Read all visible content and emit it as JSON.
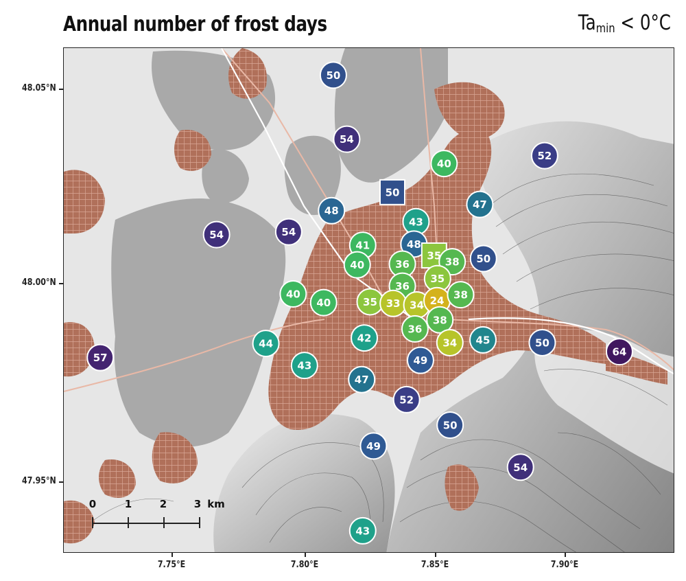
{
  "title": "Annual number of frost days",
  "condition": {
    "base": "Ta",
    "subscript": "min",
    "rest": " < 0°C"
  },
  "axes": {
    "lat_labels": [
      "48.05°N",
      "48.00°N",
      "47.95°N"
    ],
    "lon_labels": [
      "7.75°E",
      "7.80°E",
      "7.85°E",
      "7.90°E"
    ]
  },
  "scale_bar": {
    "ticks": [
      "0",
      "1",
      "2",
      "3"
    ],
    "unit": "km"
  },
  "colors": {
    "urban": "#b0705a",
    "forest": "#a8a8a8",
    "background": "#e6e6e6",
    "relief_shadow": "#6e6e6e",
    "contour": "#3a3a3a",
    "station_border": "#ffffff",
    "value_scale": [
      {
        "value": 24,
        "color": "#d4b21c"
      },
      {
        "value": 33,
        "color": "#b7c42a"
      },
      {
        "value": 35,
        "color": "#8cc63e"
      },
      {
        "value": 36,
        "color": "#55b850"
      },
      {
        "value": 40,
        "color": "#3db860"
      },
      {
        "value": 43,
        "color": "#1fa18a"
      },
      {
        "value": 45,
        "color": "#21868d"
      },
      {
        "value": 47,
        "color": "#23728e"
      },
      {
        "value": 48,
        "color": "#2a6693"
      },
      {
        "value": 49,
        "color": "#2f5a94"
      },
      {
        "value": 50,
        "color": "#31508c"
      },
      {
        "value": 52,
        "color": "#3a3d86"
      },
      {
        "value": 54,
        "color": "#40307a"
      },
      {
        "value": 57,
        "color": "#442470"
      },
      {
        "value": 64,
        "color": "#40185f"
      }
    ]
  },
  "stations": [
    {
      "value": 50,
      "lon": 7.8114,
      "lat": 48.0536,
      "shape": "circle"
    },
    {
      "value": 54,
      "lon": 7.8165,
      "lat": 48.0373,
      "shape": "circle"
    },
    {
      "value": 40,
      "lon": 7.8536,
      "lat": 48.0311,
      "shape": "circle"
    },
    {
      "value": 52,
      "lon": 7.8919,
      "lat": 48.0331,
      "shape": "circle"
    },
    {
      "value": 50,
      "lon": 7.8339,
      "lat": 48.0238,
      "shape": "square"
    },
    {
      "value": 48,
      "lon": 7.8107,
      "lat": 48.0191,
      "shape": "circle"
    },
    {
      "value": 47,
      "lon": 7.8672,
      "lat": 48.0207,
      "shape": "circle"
    },
    {
      "value": 43,
      "lon": 7.8429,
      "lat": 48.0163,
      "shape": "circle"
    },
    {
      "value": 54,
      "lon": 7.7669,
      "lat": 48.013,
      "shape": "circle"
    },
    {
      "value": 54,
      "lon": 7.7944,
      "lat": 48.0137,
      "shape": "circle"
    },
    {
      "value": 41,
      "lon": 7.8226,
      "lat": 48.0103,
      "shape": "circle"
    },
    {
      "value": 48,
      "lon": 7.8421,
      "lat": 48.0106,
      "shape": "circle"
    },
    {
      "value": 35,
      "lon": 7.8498,
      "lat": 48.0077,
      "shape": "square"
    },
    {
      "value": 38,
      "lon": 7.8567,
      "lat": 48.0061,
      "shape": "circle"
    },
    {
      "value": 50,
      "lon": 7.8686,
      "lat": 48.0069,
      "shape": "circle"
    },
    {
      "value": 40,
      "lon": 7.8205,
      "lat": 48.0053,
      "shape": "circle"
    },
    {
      "value": 36,
      "lon": 7.8377,
      "lat": 48.0055,
      "shape": "circle"
    },
    {
      "value": 35,
      "lon": 7.8511,
      "lat": 48.0018,
      "shape": "circle"
    },
    {
      "value": 36,
      "lon": 7.8377,
      "lat": 47.9999,
      "shape": "circle"
    },
    {
      "value": 40,
      "lon": 7.7961,
      "lat": 47.9979,
      "shape": "circle"
    },
    {
      "value": 40,
      "lon": 7.8077,
      "lat": 47.9957,
      "shape": "circle"
    },
    {
      "value": 35,
      "lon": 7.8254,
      "lat": 47.9959,
      "shape": "circle"
    },
    {
      "value": 33,
      "lon": 7.8342,
      "lat": 47.9955,
      "shape": "circle"
    },
    {
      "value": 34,
      "lon": 7.8432,
      "lat": 47.9951,
      "shape": "circle"
    },
    {
      "value": 24,
      "lon": 7.8509,
      "lat": 47.9962,
      "shape": "circle"
    },
    {
      "value": 38,
      "lon": 7.8599,
      "lat": 47.9977,
      "shape": "circle"
    },
    {
      "value": 38,
      "lon": 7.852,
      "lat": 47.9913,
      "shape": "circle"
    },
    {
      "value": 36,
      "lon": 7.8425,
      "lat": 47.989,
      "shape": "circle"
    },
    {
      "value": 42,
      "lon": 7.8232,
      "lat": 47.9867,
      "shape": "circle"
    },
    {
      "value": 34,
      "lon": 7.8558,
      "lat": 47.9855,
      "shape": "circle"
    },
    {
      "value": 45,
      "lon": 7.8684,
      "lat": 47.9862,
      "shape": "circle"
    },
    {
      "value": 44,
      "lon": 7.7857,
      "lat": 47.9853,
      "shape": "circle"
    },
    {
      "value": 50,
      "lon": 7.891,
      "lat": 47.9855,
      "shape": "circle"
    },
    {
      "value": 64,
      "lon": 7.9204,
      "lat": 47.9832,
      "shape": "circle"
    },
    {
      "value": 57,
      "lon": 7.7226,
      "lat": 47.9817,
      "shape": "circle"
    },
    {
      "value": 49,
      "lon": 7.8446,
      "lat": 47.981,
      "shape": "circle"
    },
    {
      "value": 43,
      "lon": 7.8004,
      "lat": 47.9797,
      "shape": "circle"
    },
    {
      "value": 47,
      "lon": 7.8222,
      "lat": 47.9761,
      "shape": "circle"
    },
    {
      "value": 52,
      "lon": 7.8393,
      "lat": 47.971,
      "shape": "circle"
    },
    {
      "value": 50,
      "lon": 7.8559,
      "lat": 47.9645,
      "shape": "circle"
    },
    {
      "value": 49,
      "lon": 7.8267,
      "lat": 47.9592,
      "shape": "circle"
    },
    {
      "value": 54,
      "lon": 7.8827,
      "lat": 47.9538,
      "shape": "circle"
    },
    {
      "value": 43,
      "lon": 7.8226,
      "lat": 47.9376,
      "shape": "circle"
    }
  ]
}
